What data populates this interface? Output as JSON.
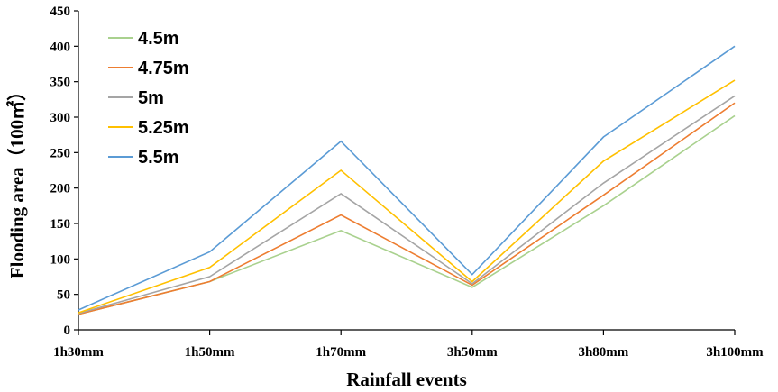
{
  "chart_data": {
    "type": "line",
    "categories": [
      "1h30mm",
      "1h50mm",
      "1h70mm",
      "3h50mm",
      "3h80mm",
      "3h100mm"
    ],
    "xlabel": "Rainfall events",
    "ylabel": "Flooding area（100㎡）",
    "ylim": [
      0,
      450
    ],
    "yticks": [
      0,
      50,
      100,
      150,
      200,
      250,
      300,
      350,
      400,
      450
    ],
    "grid": false,
    "legend": "top-left",
    "series": [
      {
        "name": "4.5m",
        "color": "#a9d18e",
        "values": [
          22,
          68,
          140,
          60,
          175,
          302
        ]
      },
      {
        "name": "4.75m",
        "color": "#ed7d31",
        "values": [
          22,
          68,
          162,
          63,
          190,
          320
        ]
      },
      {
        "name": "5m",
        "color": "#a5a5a5",
        "values": [
          23,
          75,
          192,
          65,
          207,
          330
        ]
      },
      {
        "name": "5.25m",
        "color": "#ffc000",
        "values": [
          24,
          88,
          225,
          68,
          238,
          352
        ]
      },
      {
        "name": "5.5m",
        "color": "#5b9bd5",
        "values": [
          28,
          110,
          266,
          78,
          272,
          400
        ]
      }
    ]
  }
}
